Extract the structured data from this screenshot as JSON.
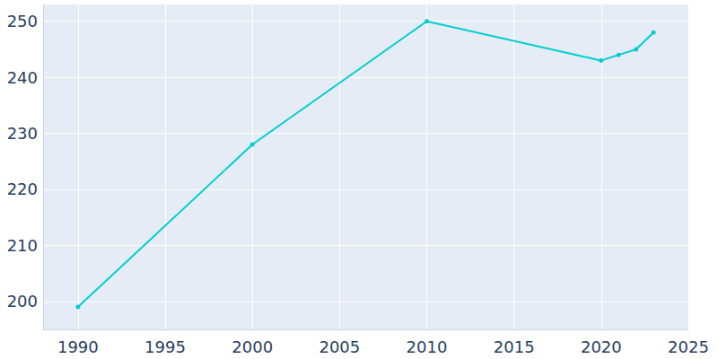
{
  "chart_data": {
    "type": "line",
    "x": [
      1990,
      2000,
      2010,
      2020,
      2021,
      2022,
      2023
    ],
    "values": [
      199,
      228,
      250,
      243,
      244,
      245,
      248
    ],
    "color": "#00ced1",
    "marker": "circle",
    "xlim": [
      1988,
      2025
    ],
    "xticks": [
      1990,
      1995,
      2000,
      2005,
      2010,
      2015,
      2020,
      2025
    ],
    "ylim": [
      195,
      253
    ],
    "yticks": [
      200,
      210,
      220,
      230,
      240,
      250
    ],
    "grid": true
  }
}
